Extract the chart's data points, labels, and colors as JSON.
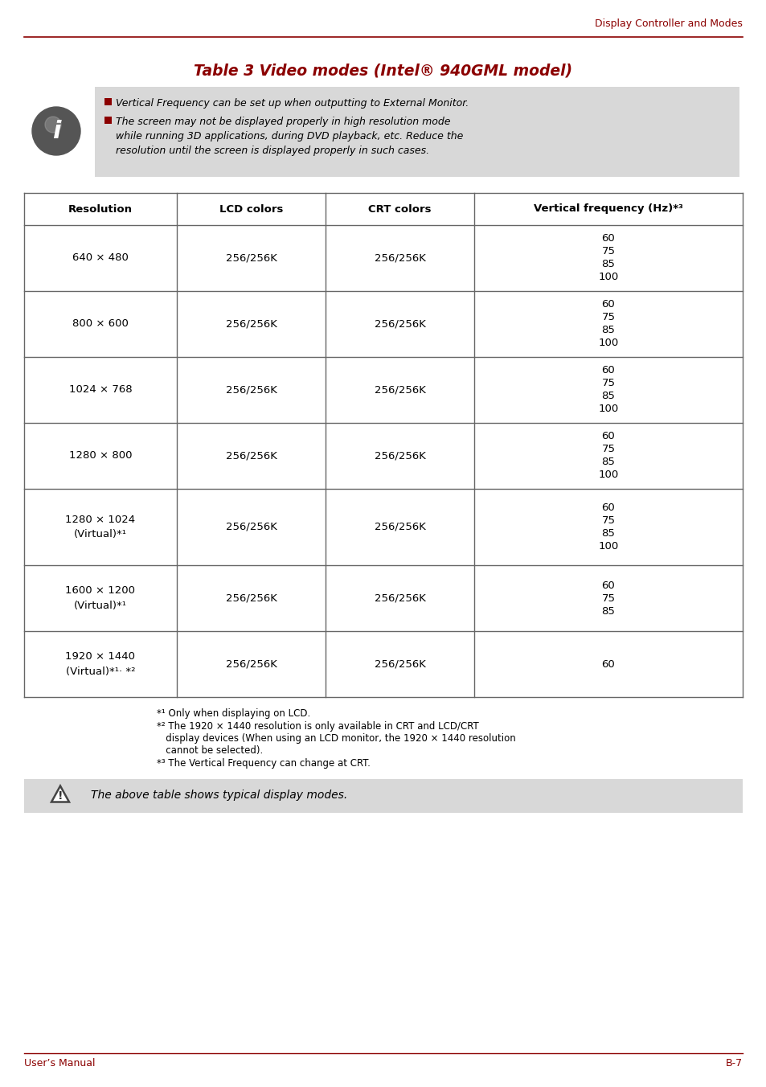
{
  "page_header": "Display Controller and Modes",
  "title": "Table 3 Video modes (Intel® 940GML model)",
  "title_color": "#8B0000",
  "info_box_color": "#D8D8D8",
  "info_lines": [
    "Vertical Frequency can be set up when outputting to External Monitor.",
    "The screen may not be displayed properly in high resolution mode\nwhile running 3D applications, during DVD playback, etc. Reduce the\nresolution until the screen is displayed properly in such cases."
  ],
  "table_headers": [
    "Resolution",
    "LCD colors",
    "CRT colors",
    "Vertical frequency (Hz)*³"
  ],
  "table_rows": [
    [
      "640 × 480",
      "256/256K",
      "256/256K",
      "60\n75\n85\n100"
    ],
    [
      "800 × 600",
      "256/256K",
      "256/256K",
      "60\n75\n85\n100"
    ],
    [
      "1024 × 768",
      "256/256K",
      "256/256K",
      "60\n75\n85\n100"
    ],
    [
      "1280 × 800",
      "256/256K",
      "256/256K",
      "60\n75\n85\n100"
    ],
    [
      "1280 × 1024\n(Virtual)*¹",
      "256/256K",
      "256/256K",
      "60\n75\n85\n100"
    ],
    [
      "1600 × 1200\n(Virtual)*¹",
      "256/256K",
      "256/256K",
      "60\n75\n85"
    ],
    [
      "1920 × 1440\n(Virtual)*¹· *²",
      "256/256K",
      "256/256K",
      "60"
    ]
  ],
  "footnote1": "*¹ Only when displaying on LCD.",
  "footnote2_line1": "*² The 1920 × 1440 resolution is only available in CRT and LCD/CRT",
  "footnote2_line2": "   display devices (When using an LCD monitor, the 1920 × 1440 resolution",
  "footnote2_line3": "   cannot be selected).",
  "footnote3": "*³ The Vertical Frequency can change at CRT.",
  "warning_box_color": "#D8D8D8",
  "warning_text": "The above table shows typical display modes.",
  "footer_left": "User’s Manual",
  "footer_right": "B-7",
  "header_line_color": "#8B0000",
  "table_line_color": "#666666",
  "bg_color": "#FFFFFF",
  "text_color": "#000000"
}
